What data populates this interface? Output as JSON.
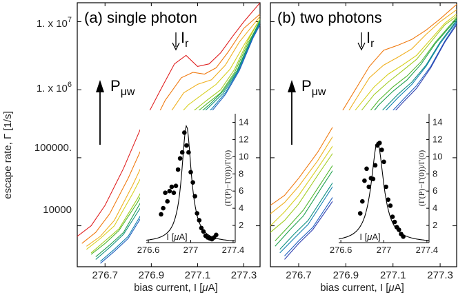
{
  "figure": {
    "ylabel": "escape rate, Γ [1/s]",
    "y_ticks": [
      {
        "value": 10000000,
        "label_main": "1. x 10",
        "label_exp": "7"
      },
      {
        "value": 1000000,
        "label_main": "1. x 10",
        "label_exp": "6"
      },
      {
        "value": 100000,
        "label_main": "100000.",
        "label_exp": ""
      },
      {
        "value": 10000,
        "label_main": "10000",
        "label_exp": ""
      }
    ],
    "xlabel_pre": "bias current, I [",
    "xlabel_mu": "μ",
    "xlabel_post": "A]",
    "ir_main": "I",
    "ir_sub": "r",
    "pmw_main": "P",
    "pmw_sub": "μw",
    "inset_ylabel": "(Γ(P)−Γ(0))/Γ(0)",
    "inset_xlabel_pre": "I [",
    "inset_xlabel_mu": "μ",
    "inset_xlabel_post": "A]",
    "panel_a_title": "(a) single photon",
    "panel_b_title": "(b) two photons"
  },
  "chart_data": [
    {
      "type": "line",
      "title": "(a) single photon",
      "xlabel": "bias current, I [μA]",
      "ylabel": "escape rate, Γ [1/s]",
      "y_scale": "log",
      "xlim": [
        276.58,
        277.37
      ],
      "ylim": [
        2500,
        19000000
      ],
      "x_ticks": [
        "276.7",
        "276.9",
        "277.1",
        "277.3"
      ],
      "grid": false,
      "legend": "none",
      "annotations": [
        "Ir (arrow at I ≈ 277.0)",
        "Pμw (arrow pointing up, increasing microwave power)"
      ],
      "series_colors": [
        "#e02020",
        "#f07a10",
        "#f0b020",
        "#d8d020",
        "#a0cc20",
        "#50b830",
        "#20a050",
        "#109080",
        "#1080b0",
        "#2060c0"
      ],
      "series": [
        {
          "x": [
            276.58,
            276.64,
            276.7,
            276.78,
            276.86,
            276.94,
            277.0,
            277.05,
            277.1,
            277.15,
            277.2,
            277.25,
            277.3,
            277.37
          ],
          "y": [
            7000,
            10000,
            20000,
            70000,
            300000,
            1000000,
            2400000,
            3200000,
            2200000,
            2400000,
            3500000,
            6000000,
            10000000,
            19000000
          ]
        },
        {
          "x": [
            276.6,
            276.66,
            276.72,
            276.8,
            276.88,
            276.96,
            277.03,
            277.08,
            277.13,
            277.18,
            277.23,
            277.3,
            277.37
          ],
          "y": [
            5500,
            8000,
            15000,
            50000,
            200000,
            700000,
            1500000,
            1800000,
            1700000,
            2100000,
            3500000,
            8000000,
            13000000
          ]
        },
        {
          "x": [
            276.62,
            276.68,
            276.74,
            276.82,
            276.9,
            276.98,
            277.04,
            277.1,
            277.16,
            277.22,
            277.28,
            277.37
          ],
          "y": [
            5000,
            7000,
            12000,
            40000,
            150000,
            450000,
            900000,
            1200000,
            1400000,
            2300000,
            5000000,
            12000000
          ]
        },
        {
          "x": [
            276.62,
            276.68,
            276.74,
            276.82,
            276.9,
            276.98,
            277.06,
            277.12,
            277.18,
            277.24,
            277.3,
            277.37
          ],
          "y": [
            4500,
            6500,
            10000,
            30000,
            100000,
            300000,
            600000,
            850000,
            1200000,
            2000000,
            4500000,
            11000000
          ]
        },
        {
          "x": [
            276.64,
            276.7,
            276.76,
            276.84,
            276.92,
            277.0,
            277.08,
            277.14,
            277.2,
            277.26,
            277.32,
            277.37
          ],
          "y": [
            4000,
            6000,
            9000,
            25000,
            80000,
            220000,
            480000,
            700000,
            1000000,
            2000000,
            5500000,
            11000000
          ]
        },
        {
          "x": [
            276.64,
            276.7,
            276.76,
            276.84,
            276.92,
            277.0,
            277.08,
            277.14,
            277.2,
            277.26,
            277.32,
            277.37
          ],
          "y": [
            3800,
            5500,
            8500,
            22000,
            70000,
            190000,
            420000,
            620000,
            900000,
            1800000,
            5000000,
            10000000
          ]
        },
        {
          "x": [
            276.66,
            276.72,
            276.78,
            276.86,
            276.94,
            277.02,
            277.09,
            277.15,
            277.21,
            277.27,
            277.33,
            277.37
          ],
          "y": [
            3500,
            5200,
            8000,
            24000,
            68000,
            200000,
            400000,
            600000,
            950000,
            1900000,
            5500000,
            10500000
          ]
        },
        {
          "x": [
            276.66,
            276.72,
            276.78,
            276.86,
            276.94,
            277.02,
            277.09,
            277.15,
            277.21,
            277.27,
            277.33,
            277.37
          ],
          "y": [
            3200,
            4800,
            7500,
            20000,
            60000,
            170000,
            360000,
            560000,
            880000,
            1800000,
            5200000,
            10000000
          ]
        },
        {
          "x": [
            276.68,
            276.74,
            276.8,
            276.88,
            276.96,
            277.04,
            277.1,
            277.16,
            277.22,
            277.28,
            277.34,
            277.37
          ],
          "y": [
            3000,
            4500,
            7000,
            20000,
            58000,
            170000,
            330000,
            520000,
            900000,
            2000000,
            6000000,
            9500000
          ]
        },
        {
          "x": [
            276.68,
            276.74,
            276.8,
            276.88,
            276.96,
            277.04,
            277.1,
            277.16,
            277.22,
            277.28,
            277.34,
            277.37
          ],
          "y": [
            2800,
            4200,
            6500,
            18000,
            52000,
            150000,
            300000,
            480000,
            850000,
            1900000,
            5800000,
            9000000
          ]
        }
      ],
      "inset": {
        "type": "scatter+line",
        "xlabel": "I [μA]",
        "ylabel": "(Γ(P)−Γ(0))/Γ(0)",
        "xlim": [
          276.58,
          277.42
        ],
        "ylim": [
          0,
          15
        ],
        "x_ticks": [
          "276.6",
          "277",
          "277.4"
        ],
        "y_ticks": [
          "2",
          "4",
          "6",
          "8",
          "10",
          "12",
          "14"
        ],
        "points_x": [
          276.72,
          276.74,
          276.76,
          276.78,
          276.8,
          276.82,
          276.84,
          276.86,
          276.88,
          276.9,
          276.92,
          276.94,
          276.96,
          276.98,
          277.0,
          277.02,
          277.04,
          277.06,
          277.08,
          277.1,
          277.12,
          277.14,
          277.16,
          277.18,
          277.2,
          277.22,
          277.24
        ],
        "points_y": [
          3.3,
          4.0,
          5.8,
          4.8,
          6.0,
          6.5,
          5.8,
          6.6,
          8.5,
          9.8,
          10.5,
          12.8,
          11.3,
          10.5,
          8.2,
          7.0,
          5.4,
          3.4,
          2.6,
          1.7,
          1.3,
          0.8,
          0.6,
          0.5,
          0.4,
          0.6,
          0.9
        ],
        "fit_center": 276.96,
        "fit_width": 0.055,
        "fit_peak": 13.6
      }
    },
    {
      "type": "line",
      "title": "(b) two photons",
      "xlabel": "bias current, I [μA]",
      "ylabel": "escape rate, Γ [1/s]",
      "y_scale": "log",
      "xlim": [
        276.58,
        277.37
      ],
      "ylim": [
        2500,
        19000000
      ],
      "x_ticks": [
        "276.7",
        "276.9",
        "277.1",
        "277.3"
      ],
      "grid": false,
      "legend": "none",
      "annotations": [
        "Ir (arrow at I ≈ 277.0)",
        "Pμw (arrow pointing up, increasing microwave power)"
      ],
      "series_colors": [
        "#f07a10",
        "#f0b020",
        "#d8d020",
        "#a0cc20",
        "#50b830",
        "#20a050",
        "#109080",
        "#1080b0",
        "#2060c0",
        "#3040b0"
      ],
      "series": [
        {
          "x": [
            276.58,
            276.64,
            276.7,
            276.78,
            276.86,
            276.94,
            277.0,
            277.06,
            277.12,
            277.18,
            277.24,
            277.3,
            277.37
          ],
          "y": [
            20000,
            28000,
            50000,
            120000,
            350000,
            1000000,
            2200000,
            3800000,
            4500000,
            5500000,
            7500000,
            11000000,
            18000000
          ]
        },
        {
          "x": [
            276.58,
            276.64,
            276.7,
            276.78,
            276.86,
            276.94,
            277.0,
            277.06,
            277.12,
            277.18,
            277.24,
            277.3,
            277.37
          ],
          "y": [
            15000,
            22000,
            38000,
            90000,
            250000,
            700000,
            1500000,
            2300000,
            3000000,
            4000000,
            6500000,
            10000000,
            15000000
          ]
        },
        {
          "x": [
            276.58,
            276.64,
            276.7,
            276.78,
            276.86,
            276.94,
            277.02,
            277.08,
            277.14,
            277.2,
            277.26,
            277.32,
            277.37
          ],
          "y": [
            10000,
            16000,
            28000,
            70000,
            180000,
            500000,
            1100000,
            1700000,
            2300000,
            3200000,
            5500000,
            9500000,
            13000000
          ]
        },
        {
          "x": [
            276.58,
            276.64,
            276.7,
            276.78,
            276.86,
            276.94,
            277.02,
            277.08,
            277.14,
            277.2,
            277.26,
            277.32,
            277.37
          ],
          "y": [
            8000,
            12000,
            21000,
            55000,
            140000,
            380000,
            850000,
            1300000,
            1900000,
            2800000,
            5000000,
            9000000,
            12000000
          ]
        },
        {
          "x": [
            276.6,
            276.66,
            276.72,
            276.8,
            276.88,
            276.96,
            277.04,
            277.1,
            277.16,
            277.22,
            277.28,
            277.37
          ],
          "y": [
            6000,
            10000,
            17000,
            45000,
            120000,
            320000,
            700000,
            1100000,
            1600000,
            2600000,
            5000000,
            11500000
          ]
        },
        {
          "x": [
            276.6,
            276.66,
            276.72,
            276.8,
            276.88,
            276.96,
            277.04,
            277.1,
            277.16,
            277.22,
            277.28,
            277.37
          ],
          "y": [
            5000,
            8500,
            14000,
            38000,
            100000,
            270000,
            600000,
            950000,
            1400000,
            2400000,
            4800000,
            11000000
          ]
        },
        {
          "x": [
            276.62,
            276.68,
            276.74,
            276.82,
            276.9,
            276.98,
            277.06,
            277.12,
            277.18,
            277.24,
            277.3,
            277.37
          ],
          "y": [
            4500,
            7500,
            12000,
            32000,
            85000,
            230000,
            520000,
            850000,
            1300000,
            2300000,
            5000000,
            10500000
          ]
        },
        {
          "x": [
            276.62,
            276.68,
            276.74,
            276.82,
            276.9,
            276.98,
            277.06,
            277.12,
            277.18,
            277.24,
            277.3,
            277.37
          ],
          "y": [
            4000,
            6500,
            10500,
            28000,
            75000,
            200000,
            460000,
            760000,
            1200000,
            2200000,
            4800000,
            10000000
          ]
        },
        {
          "x": [
            276.64,
            276.7,
            276.76,
            276.84,
            276.92,
            277.0,
            277.08,
            277.14,
            277.2,
            277.26,
            277.32,
            277.37
          ],
          "y": [
            3600,
            6000,
            9500,
            25000,
            68000,
            180000,
            420000,
            700000,
            1150000,
            2200000,
            5200000,
            9500000
          ]
        },
        {
          "x": [
            276.64,
            276.7,
            276.76,
            276.84,
            276.92,
            277.0,
            277.08,
            277.14,
            277.2,
            277.26,
            277.32,
            277.37
          ],
          "y": [
            3200,
            5500,
            8800,
            22000,
            60000,
            160000,
            380000,
            640000,
            1050000,
            2100000,
            5000000,
            9000000
          ]
        }
      ],
      "inset": {
        "type": "scatter+line",
        "xlabel": "I [μA]",
        "ylabel": "(Γ(P)−Γ(0))/Γ(0)",
        "xlim": [
          276.58,
          277.42
        ],
        "ylim": [
          0,
          15
        ],
        "x_ticks": [
          "276.6",
          "277",
          "277.4"
        ],
        "y_ticks": [
          "2",
          "4",
          "6",
          "8",
          "10",
          "12",
          "14"
        ],
        "points_x": [
          276.78,
          276.8,
          276.82,
          276.84,
          276.86,
          276.88,
          276.9,
          276.92,
          276.94,
          276.96,
          276.98,
          277.0,
          277.02,
          277.04,
          277.06,
          277.08,
          277.1,
          277.12,
          277.14,
          277.16,
          277.18
        ],
        "points_y": [
          3.4,
          4.8,
          7.2,
          8.6,
          6.5,
          7.5,
          7.4,
          9.0,
          11.3,
          11.6,
          10.8,
          9.4,
          6.5,
          5.0,
          4.3,
          3.0,
          2.4,
          1.8,
          1.5,
          1.0,
          0.7
        ],
        "fit_center": 276.94,
        "fit_width": 0.07,
        "fit_peak": 11.7
      }
    }
  ]
}
